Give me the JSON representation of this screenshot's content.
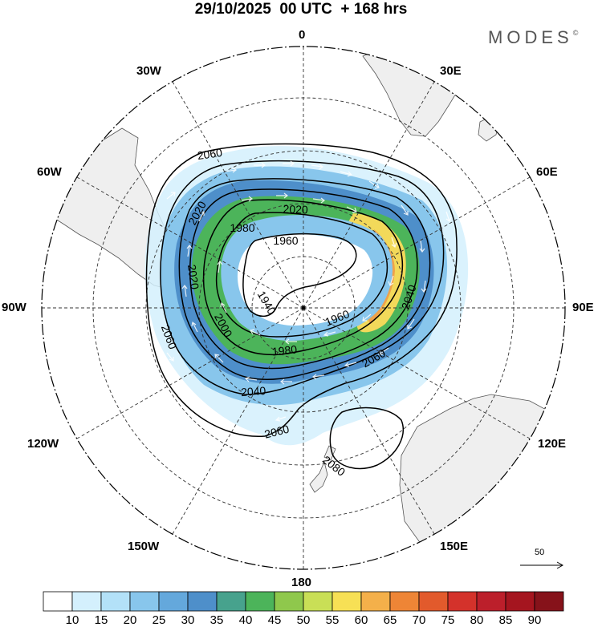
{
  "header": {
    "title": "29/10/2025  00 UTC  + 168 hrs",
    "brand": "MODES",
    "brand_mark": "©"
  },
  "longitude_labels": {
    "n0": "0",
    "n30e": "30E",
    "n60e": "60E",
    "n90e": "90E",
    "n120e": "120E",
    "n150e": "150E",
    "n180": "180",
    "n150w": "150W",
    "n120w": "120W",
    "n90w": "90W",
    "n60w": "60W",
    "n30w": "30W"
  },
  "contour_labels": {
    "c2060a": "2060",
    "c2020a": "2020",
    "c2020b": "2020",
    "c1980a": "1980",
    "c1960a": "1960",
    "c2020c": "2020",
    "c1940": "1940",
    "c2000": "2000",
    "c1960b": "1960",
    "c2040a": "2040",
    "c1980b": "1980",
    "c2060b": "2060",
    "c2060c": "2060",
    "c2040b": "2040",
    "c2060d": "2060",
    "c2080": "2080"
  },
  "reference_vector": {
    "label": "50"
  },
  "colorbar": {
    "ticks": [
      "10",
      "15",
      "20",
      "25",
      "30",
      "35",
      "40",
      "45",
      "50",
      "55",
      "60",
      "65",
      "70",
      "75",
      "80",
      "85",
      "90"
    ],
    "colors": [
      "#ffffff",
      "#d4f0fd",
      "#b3e1f8",
      "#88c6ec",
      "#64a8dc",
      "#4e8fca",
      "#47a28d",
      "#4cb45a",
      "#8fc84c",
      "#c9df56",
      "#f7e055",
      "#f4b04a",
      "#ee8536",
      "#e25a2c",
      "#d4322b",
      "#bc1f2b",
      "#a5151f",
      "#86121a"
    ]
  }
}
